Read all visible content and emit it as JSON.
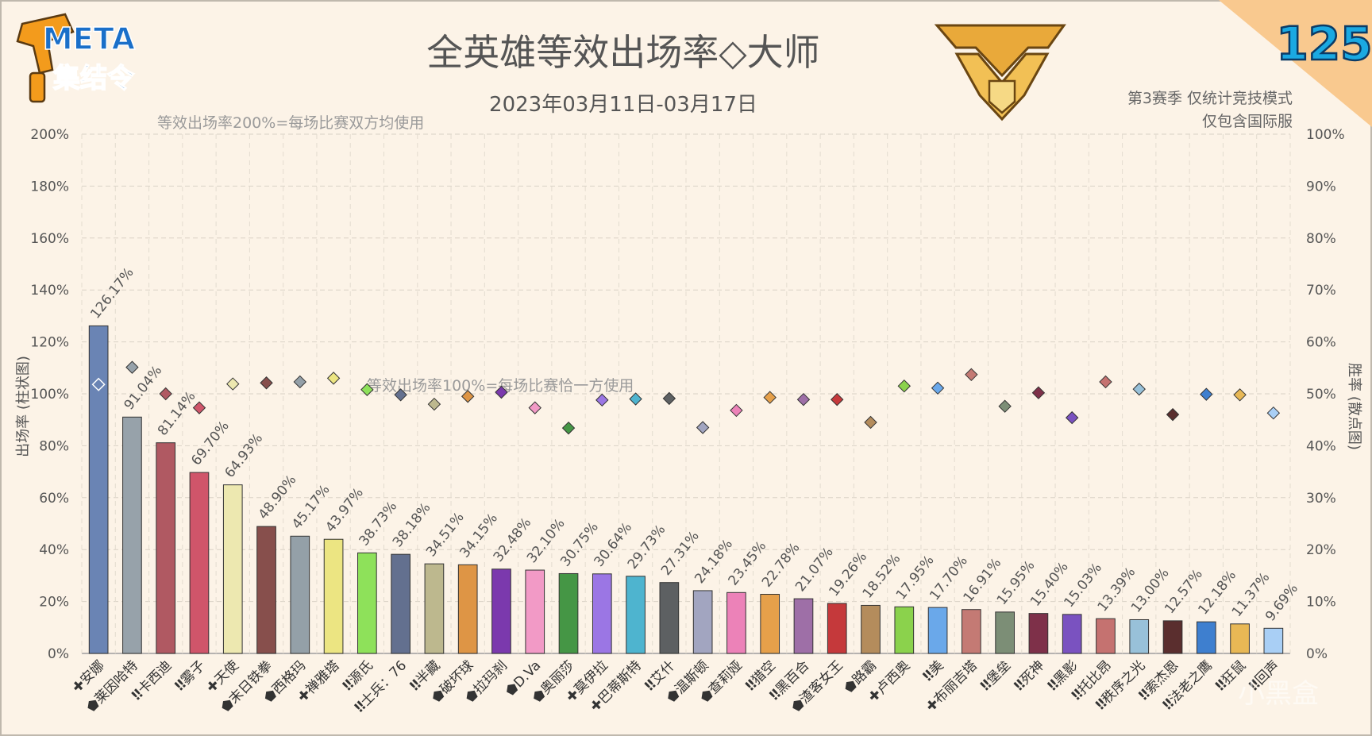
{
  "header": {
    "logo_line1": "META",
    "logo_line2": "集结令",
    "title": "全英雄等效出场率◇大师",
    "date_range": "2023年03月11日-03月17日",
    "issue_number": "125",
    "note_season": "第3赛季 仅统计竞技模式",
    "note_server": "仅包含国际服",
    "watermark": "小黑盒"
  },
  "annotations": {
    "line200": "等效出场率200%=每场比赛双方均使用",
    "line100": "等效出场率100%=每场比赛恰一方使用"
  },
  "chart_data": {
    "type": "bar",
    "title": "全英雄等效出场率◇大师",
    "ylabel": "出场率 (柱状图)",
    "y2label": "胜率 (散点图)",
    "ylim": [
      0,
      200
    ],
    "y2lim": [
      0,
      100
    ],
    "yticks": [
      "0%",
      "20%",
      "40%",
      "60%",
      "80%",
      "100%",
      "120%",
      "140%",
      "160%",
      "180%",
      "200%"
    ],
    "y2ticks": [
      "0%",
      "10%",
      "20%",
      "30%",
      "40%",
      "50%",
      "60%",
      "70%",
      "80%",
      "90%",
      "100%"
    ],
    "grid": true,
    "categories": [
      "安娜",
      "莱因哈特",
      "卡西迪",
      "雾子",
      "天使",
      "末日铁拳",
      "西格玛",
      "禅雅塔",
      "源氏",
      "士兵：76",
      "半藏",
      "破坏球",
      "拉玛刹",
      "D.Va",
      "奥丽莎",
      "莫伊拉",
      "巴蒂斯特",
      "艾什",
      "温斯顿",
      "查莉娅",
      "猎空",
      "黑百合",
      "渣客女王",
      "路霸",
      "卢西奥",
      "美",
      "布丽吉塔",
      "堡垒",
      "死神",
      "黑影",
      "托比昂",
      "秩序之光",
      "索杰恩",
      "法老之鹰",
      "狂鼠",
      "回声"
    ],
    "roles": [
      "support",
      "tank",
      "damage",
      "damage",
      "support",
      "tank",
      "tank",
      "support",
      "damage",
      "damage",
      "damage",
      "tank",
      "tank",
      "tank",
      "tank",
      "support",
      "support",
      "damage",
      "tank",
      "tank",
      "damage",
      "damage",
      "tank",
      "tank",
      "support",
      "damage",
      "support",
      "damage",
      "damage",
      "damage",
      "damage",
      "damage",
      "damage",
      "damage",
      "damage",
      "damage"
    ],
    "series": [
      {
        "name": "出场率",
        "values": [
          126.17,
          91.04,
          81.14,
          69.7,
          64.93,
          48.9,
          45.17,
          43.97,
          38.73,
          38.18,
          34.51,
          34.15,
          32.48,
          32.1,
          30.75,
          30.64,
          29.73,
          27.31,
          24.18,
          23.45,
          22.78,
          21.07,
          19.26,
          18.52,
          17.95,
          17.7,
          16.91,
          15.95,
          15.4,
          15.03,
          13.39,
          13.0,
          12.57,
          12.18,
          11.37,
          9.69
        ],
        "labels": [
          "126.17%",
          "91.04%",
          "81.14%",
          "69.70%",
          "64.93%",
          "48.90%",
          "45.17%",
          "43.97%",
          "38.73%",
          "38.18%",
          "34.51%",
          "34.15%",
          "32.48%",
          "32.10%",
          "30.75%",
          "30.64%",
          "29.73%",
          "27.31%",
          "24.18%",
          "23.45%",
          "22.78%",
          "21.07%",
          "19.26%",
          "18.52%",
          "17.95%",
          "17.70%",
          "16.91%",
          "15.95%",
          "15.40%",
          "15.03%",
          "13.39%",
          "13.00%",
          "12.57%",
          "12.18%",
          "11.37%",
          "9.69%"
        ]
      },
      {
        "name": "胜率",
        "values": [
          51.8,
          55.1,
          50.0,
          47.3,
          51.9,
          52.1,
          52.3,
          53.0,
          50.8,
          49.8,
          48.0,
          49.5,
          50.3,
          47.3,
          43.4,
          48.8,
          49.0,
          49.1,
          43.5,
          46.8,
          49.3,
          48.9,
          48.9,
          44.5,
          51.5,
          51.1,
          53.7,
          47.6,
          50.2,
          45.4,
          52.3,
          50.9,
          46.0,
          49.9,
          49.8,
          46.3
        ]
      }
    ],
    "colors": [
      "#6a84b4",
      "#97a2aa",
      "#b05962",
      "#d0556a",
      "#ede8b0",
      "#874f4c",
      "#94a0a8",
      "#ece582",
      "#8ee15a",
      "#63708f",
      "#bdb88e",
      "#de9545",
      "#7b39ad",
      "#f29ac6",
      "#459645",
      "#9b76e4",
      "#4eb4cf",
      "#5d6062",
      "#a2a5c0",
      "#ec82b8",
      "#e6a04a",
      "#9e6fa7",
      "#c5393b",
      "#b48c5c",
      "#8bd24c",
      "#6aa8ea",
      "#c47a74",
      "#7c8e76",
      "#7e3049",
      "#7a52c0",
      "#c57270",
      "#98c1d9",
      "#5a2e2e",
      "#3e7fcf",
      "#e8b855",
      "#a9cff5"
    ]
  }
}
